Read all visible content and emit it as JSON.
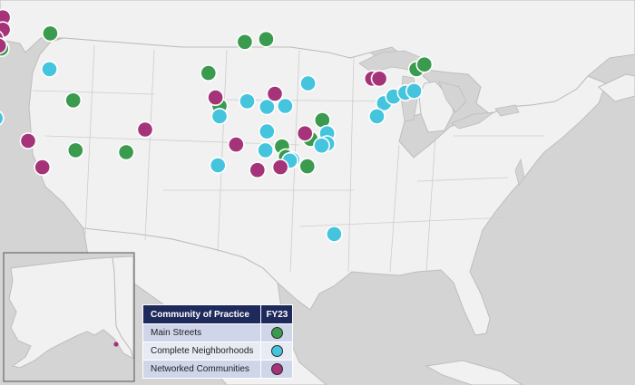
{
  "colors": {
    "water": "#d4d4d4",
    "land": "#f1f1f1",
    "border": "#bdbdbd",
    "main_streets": "#3a9a4e",
    "complete_neighborhoods": "#45c4de",
    "networked_communities": "#a53379"
  },
  "legend": {
    "header_category": "Community of Practice",
    "header_year": "FY23",
    "rows": [
      {
        "label": "Main Streets",
        "icon": "green-circle"
      },
      {
        "label": "Complete Neighborhoods",
        "icon": "blue-circle"
      },
      {
        "label": "Networked Communities",
        "icon": "purple-circle"
      }
    ]
  },
  "inset": {
    "region": "Alaska",
    "marker": "networked_communities"
  },
  "markers": [
    {
      "category": "main_streets",
      "lon": -116.7,
      "lat": 47.7
    },
    {
      "category": "main_streets",
      "lon": -92.1,
      "lat": 46.8
    },
    {
      "category": "main_streets",
      "lon": -89.4,
      "lat": 47.1
    },
    {
      "category": "main_streets",
      "lon": -122.9,
      "lat": 46.1
    },
    {
      "category": "main_streets",
      "lon": -96.7,
      "lat": 43.5
    },
    {
      "category": "main_streets",
      "lon": -70.4,
      "lat": 43.9
    },
    {
      "category": "main_streets",
      "lon": -69.4,
      "lat": 44.4
    },
    {
      "category": "main_streets",
      "lon": -113.8,
      "lat": 40.6
    },
    {
      "category": "main_streets",
      "lon": -95.3,
      "lat": 40.0
    },
    {
      "category": "main_streets",
      "lon": -82.3,
      "lat": 38.5
    },
    {
      "category": "main_streets",
      "lon": -83.8,
      "lat": 36.5
    },
    {
      "category": "main_streets",
      "lon": -87.4,
      "lat": 35.7
    },
    {
      "category": "main_streets",
      "lon": -107.1,
      "lat": 35.1
    },
    {
      "category": "main_streets",
      "lon": -113.5,
      "lat": 35.3
    },
    {
      "category": "main_streets",
      "lon": -86.9,
      "lat": 34.6
    },
    {
      "category": "main_streets",
      "lon": -84.2,
      "lat": 33.6
    },
    {
      "category": "complete_neighborhoods",
      "lon": -116.8,
      "lat": 43.9
    },
    {
      "category": "complete_neighborhoods",
      "lon": -84.1,
      "lat": 42.4
    },
    {
      "category": "complete_neighborhoods",
      "lon": -91.8,
      "lat": 40.5
    },
    {
      "category": "complete_neighborhoods",
      "lon": -89.3,
      "lat": 39.9
    },
    {
      "category": "complete_neighborhoods",
      "lon": -87.0,
      "lat": 40.0
    },
    {
      "category": "complete_neighborhoods",
      "lon": -95.3,
      "lat": 38.9
    },
    {
      "category": "complete_neighborhoods",
      "lon": -123.6,
      "lat": 38.7
    },
    {
      "category": "complete_neighborhoods",
      "lon": -74.5,
      "lat": 40.3
    },
    {
      "category": "complete_neighborhoods",
      "lon": -73.3,
      "lat": 41.0
    },
    {
      "category": "complete_neighborhoods",
      "lon": -71.8,
      "lat": 41.4
    },
    {
      "category": "complete_neighborhoods",
      "lon": -70.7,
      "lat": 41.6
    },
    {
      "category": "complete_neighborhoods",
      "lon": -75.4,
      "lat": 38.9
    },
    {
      "category": "complete_neighborhoods",
      "lon": -89.3,
      "lat": 37.3
    },
    {
      "category": "complete_neighborhoods",
      "lon": -81.7,
      "lat": 37.1
    },
    {
      "category": "complete_neighborhoods",
      "lon": -81.7,
      "lat": 36.0
    },
    {
      "category": "complete_neighborhoods",
      "lon": -82.4,
      "lat": 35.8
    },
    {
      "category": "complete_neighborhoods",
      "lon": -89.5,
      "lat": 35.3
    },
    {
      "category": "complete_neighborhoods",
      "lon": -86.1,
      "lat": 34.3
    },
    {
      "category": "complete_neighborhoods",
      "lon": -86.4,
      "lat": 34.2
    },
    {
      "category": "complete_neighborhoods",
      "lon": -95.5,
      "lat": 33.7
    },
    {
      "category": "complete_neighborhoods",
      "lon": -80.8,
      "lat": 26.4
    },
    {
      "category": "networked_communities",
      "lon": -122.7,
      "lat": 49.4
    },
    {
      "category": "networked_communities",
      "lon": -122.7,
      "lat": 48.1
    },
    {
      "category": "networked_communities",
      "lon": -123.6,
      "lat": 47.2
    },
    {
      "category": "networked_communities",
      "lon": -123.2,
      "lat": 46.4
    },
    {
      "category": "networked_communities",
      "lon": -95.8,
      "lat": 40.9
    },
    {
      "category": "networked_communities",
      "lon": -88.3,
      "lat": 41.3
    },
    {
      "category": "networked_communities",
      "lon": -76.0,
      "lat": 42.9
    },
    {
      "category": "networked_communities",
      "lon": -75.1,
      "lat": 42.9
    },
    {
      "category": "networked_communities",
      "lon": -104.7,
      "lat": 37.5
    },
    {
      "category": "networked_communities",
      "lon": -119.5,
      "lat": 36.3
    },
    {
      "category": "networked_communities",
      "lon": -84.5,
      "lat": 37.1
    },
    {
      "category": "networked_communities",
      "lon": -93.2,
      "lat": 35.9
    },
    {
      "category": "networked_communities",
      "lon": -117.7,
      "lat": 33.5
    },
    {
      "category": "networked_communities",
      "lon": -90.5,
      "lat": 33.2
    },
    {
      "category": "networked_communities",
      "lon": -87.6,
      "lat": 33.5
    }
  ]
}
